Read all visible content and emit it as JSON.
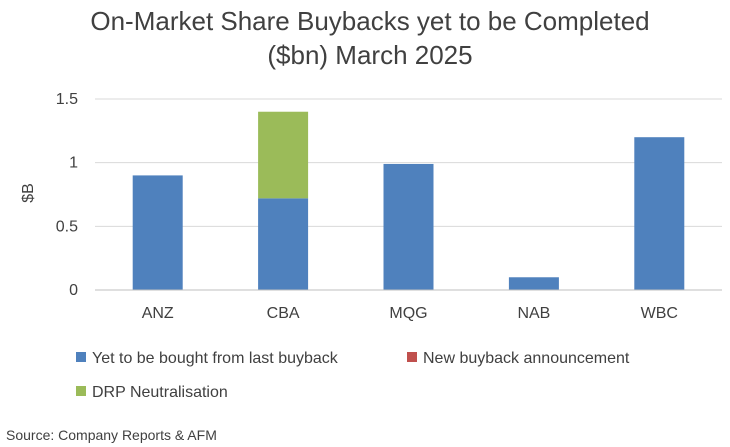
{
  "chart_data": {
    "type": "bar",
    "stacked": true,
    "title_lines": [
      "On-Market Share Buybacks yet to be Completed",
      "($bn) March 2025"
    ],
    "ylabel": "$B",
    "xlabel": "",
    "categories": [
      "ANZ",
      "CBA",
      "MQG",
      "NAB",
      "WBC"
    ],
    "series": [
      {
        "name": "Yet to be bought from last buyback",
        "color": "#4F81BD",
        "values": [
          0.9,
          0.72,
          0.99,
          0.1,
          1.2
        ]
      },
      {
        "name": "New buyback announcement",
        "color": "#C0504D",
        "values": [
          0,
          0,
          0,
          0,
          0
        ]
      },
      {
        "name": "DRP Neutralisation",
        "color": "#9BBB59",
        "values": [
          0,
          0.68,
          0,
          0,
          0
        ]
      }
    ],
    "ylim": [
      0,
      1.5
    ],
    "yticks": [
      "0",
      "0.5",
      "1",
      "1.5"
    ],
    "grid": true,
    "legend_position": "bottom"
  },
  "source": "Source: Company Reports & AFM"
}
